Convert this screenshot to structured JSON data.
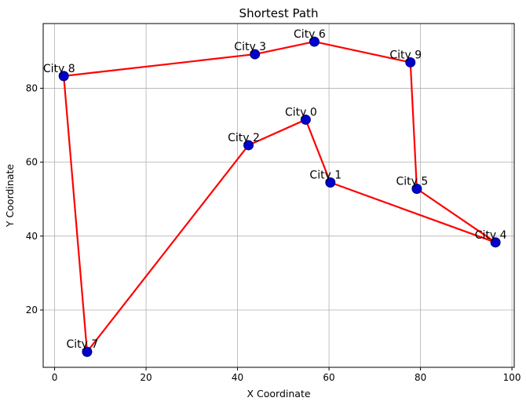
{
  "chart_data": {
    "type": "line",
    "title": "Shortest Path",
    "xlabel": "X Coordinate",
    "ylabel": "Y Coordinate",
    "xlim": [
      -2.5,
      100.5
    ],
    "ylim": [
      4.5,
      97.5
    ],
    "xticks": [
      0,
      20,
      40,
      60,
      80,
      100
    ],
    "yticks": [
      20,
      40,
      60,
      80
    ],
    "grid": true,
    "colors": {
      "path": "#ff0000",
      "marker_fill": "#0000cc",
      "marker_edge": "#00007a",
      "grid": "#b0b0b0"
    },
    "points": [
      {
        "label": "City 0",
        "x": 54.9,
        "y": 71.5
      },
      {
        "label": "City 1",
        "x": 60.3,
        "y": 54.5
      },
      {
        "label": "City 2",
        "x": 42.4,
        "y": 64.6
      },
      {
        "label": "City 3",
        "x": 43.8,
        "y": 89.2
      },
      {
        "label": "City 4",
        "x": 96.4,
        "y": 38.3
      },
      {
        "label": "City 5",
        "x": 79.2,
        "y": 52.8
      },
      {
        "label": "City 6",
        "x": 56.8,
        "y": 92.6
      },
      {
        "label": "City 7",
        "x": 7.1,
        "y": 8.7
      },
      {
        "label": "City 8",
        "x": 2.0,
        "y": 83.3
      },
      {
        "label": "City 9",
        "x": 77.8,
        "y": 87.0
      }
    ],
    "route": [
      0,
      1,
      4,
      5,
      9,
      6,
      3,
      8,
      7,
      2,
      0
    ]
  }
}
